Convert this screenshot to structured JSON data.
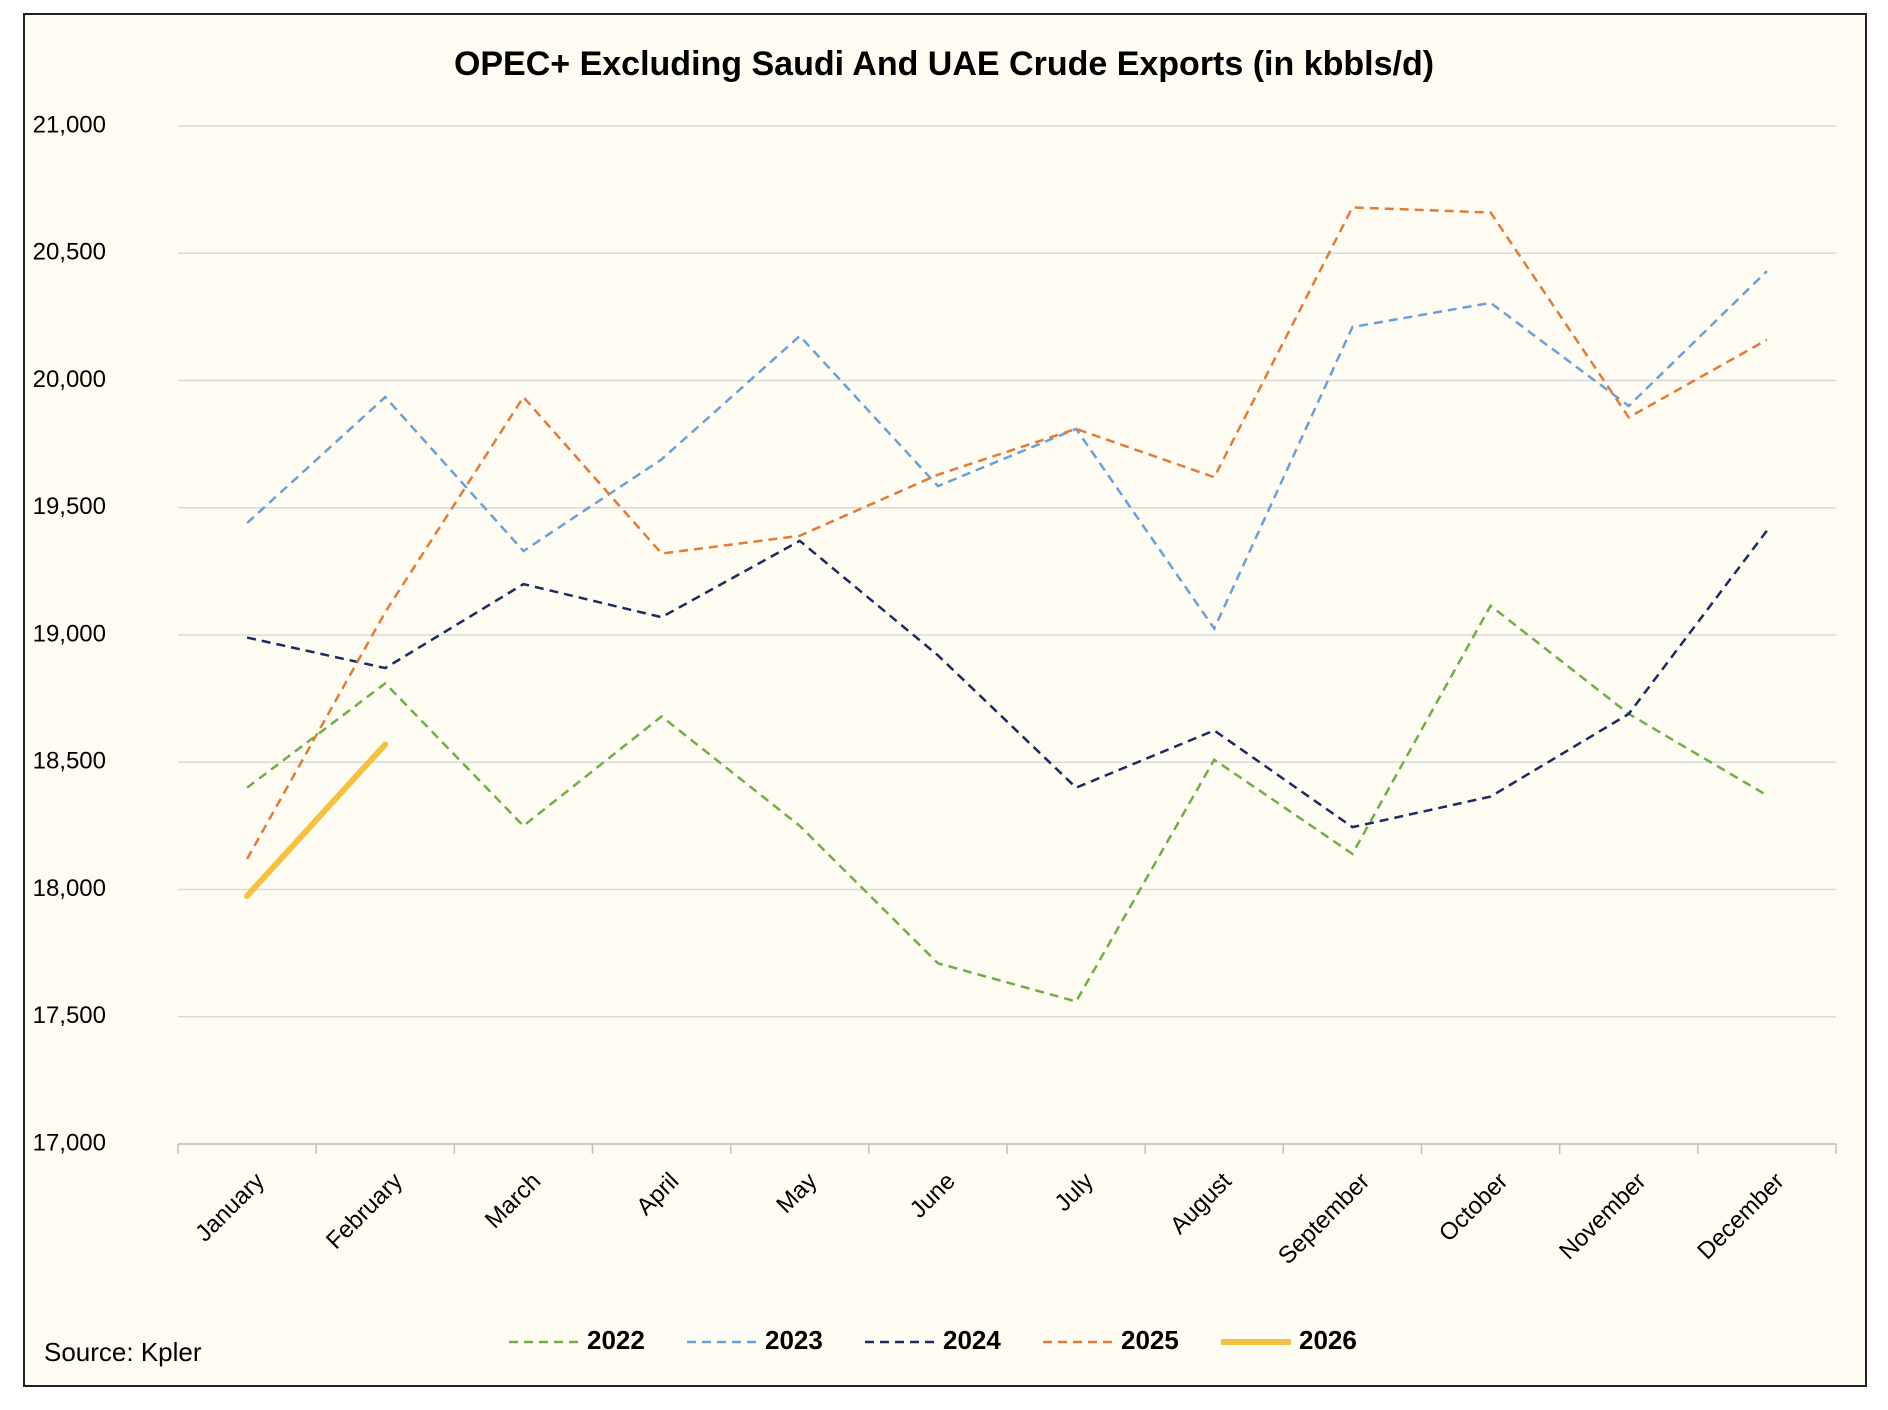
{
  "chart_data": {
    "type": "line",
    "title": "OPEC+ Excluding Saudi And UAE Crude Exports (in kbbls/d)",
    "source": "Source: Kpler",
    "categories": [
      "January",
      "February",
      "March",
      "April",
      "May",
      "June",
      "July",
      "August",
      "September",
      "October",
      "November",
      "December"
    ],
    "series": [
      {
        "name": "2022",
        "color": "#70ad47",
        "dashed": true,
        "values": [
          18400,
          18810,
          18250,
          18680,
          18250,
          17710,
          17560,
          18510,
          18140,
          19115,
          18690,
          18370
        ]
      },
      {
        "name": "2023",
        "color": "#6a9fd8",
        "dashed": true,
        "values": [
          19440,
          19935,
          19330,
          19690,
          20175,
          19585,
          19810,
          19025,
          20210,
          20305,
          19900,
          20430
        ]
      },
      {
        "name": "2024",
        "color": "#1c2a5e",
        "dashed": true,
        "values": [
          18990,
          18870,
          19200,
          19070,
          19370,
          18920,
          18400,
          18625,
          18245,
          18365,
          18690,
          19410
        ]
      },
      {
        "name": "2025",
        "color": "#e07b39",
        "dashed": true,
        "values": [
          18120,
          19090,
          19935,
          19320,
          19390,
          19630,
          19810,
          19620,
          20680,
          20660,
          19855,
          20160
        ]
      },
      {
        "name": "2026",
        "color": "#f4c242",
        "dashed": false,
        "values": [
          17975,
          18570,
          null,
          null,
          null,
          null,
          null,
          null,
          null,
          null,
          null,
          null
        ]
      }
    ],
    "ylim": [
      17000,
      21000
    ],
    "yticks": [
      {
        "value": 17000,
        "label": "17,000"
      },
      {
        "value": 17500,
        "label": "17,500"
      },
      {
        "value": 18000,
        "label": "18,000"
      },
      {
        "value": 18500,
        "label": "18,500"
      },
      {
        "value": 19000,
        "label": "19,000"
      },
      {
        "value": 19500,
        "label": "19,500"
      },
      {
        "value": 20000,
        "label": "20,000"
      },
      {
        "value": 20500,
        "label": "20,500"
      },
      {
        "value": 21000,
        "label": "21,000"
      }
    ],
    "grid": true,
    "legend": "bottom"
  }
}
